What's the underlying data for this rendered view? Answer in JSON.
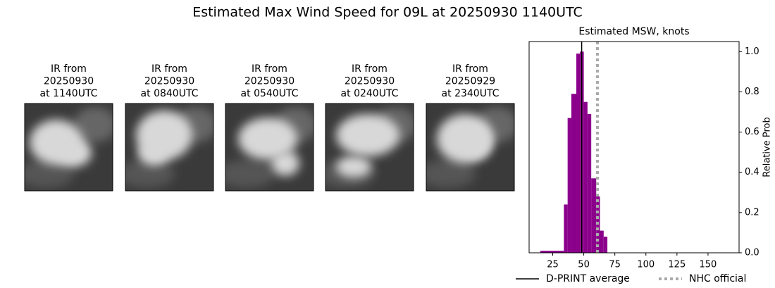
{
  "title": "Estimated Max Wind Speed for 09L at 20250930 1140UTC",
  "images": [
    {
      "lines": [
        "IR from",
        "20250930",
        "at 1140UTC"
      ]
    },
    {
      "lines": [
        "IR from",
        "20250930",
        "at 0840UTC"
      ]
    },
    {
      "lines": [
        "IR from",
        "20250930",
        "at 0540UTC"
      ]
    },
    {
      "lines": [
        "IR from",
        "20250930",
        "at 0240UTC"
      ]
    },
    {
      "lines": [
        "IR from",
        "20250929",
        "at 2340UTC"
      ]
    }
  ],
  "chart_data": {
    "type": "histogram",
    "title": "Estimated MSW, knots",
    "y_label": "Relative Prob",
    "bins": [
      15,
      34,
      37,
      40,
      44,
      47,
      50,
      53,
      56,
      60,
      63,
      66,
      69
    ],
    "values": [
      0.01,
      0.24,
      0.67,
      0.79,
      0.99,
      1.0,
      0.75,
      0.69,
      0.37,
      0.28,
      0.11,
      0.08
    ],
    "color": "#8b008b",
    "xlim": [
      6,
      175
    ],
    "xticks": [
      25,
      50,
      75,
      100,
      125,
      150
    ],
    "ylim": [
      0,
      1.05
    ],
    "yticks": [
      {
        "value": 0,
        "label": "0.0"
      },
      0.2,
      0.4,
      0.6,
      0.8,
      {
        "value": 1,
        "label": "1.0"
      }
    ],
    "reference_lines": [
      {
        "name": "D-PRINT average",
        "value": 48.3,
        "color": "#000000",
        "style": "solid"
      },
      {
        "name": "NHC official",
        "value": 61,
        "color": "#aaaaaa",
        "style": "dotted"
      }
    ]
  }
}
